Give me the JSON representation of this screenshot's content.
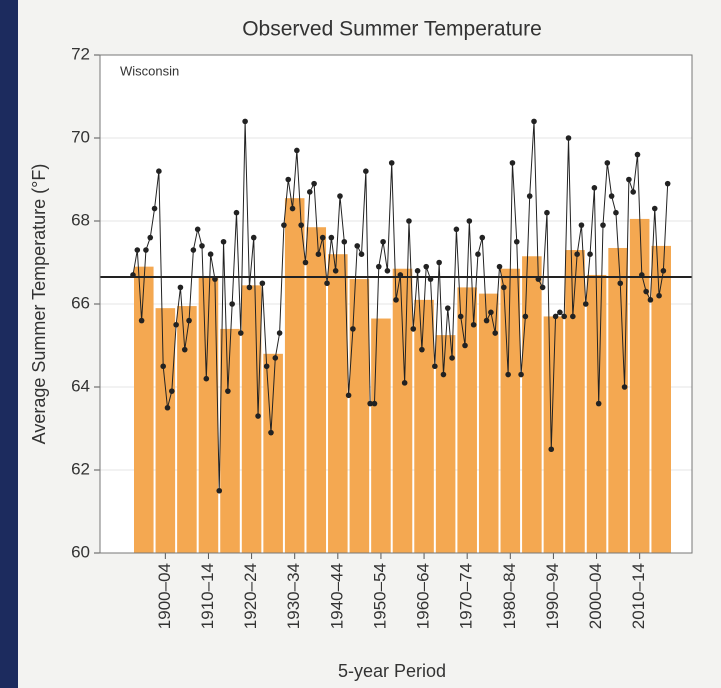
{
  "chart_data": {
    "type": "bar",
    "title": "Observed Summer Temperature",
    "annotation": "Wisconsin",
    "x_label": "5-year Period",
    "y_label": "Average Summer Temperature (°F)",
    "categories": [
      null,
      "1900–04",
      null,
      "1910–14",
      null,
      "1920–24",
      null,
      "1930–34",
      null,
      "1940–44",
      null,
      "1950–54",
      null,
      "1960–64",
      null,
      "1970–74",
      null,
      "1980–84",
      null,
      "1990–94",
      null,
      "2000–04",
      null,
      "2010–14",
      null
    ],
    "values": [
      66.9,
      65.9,
      65.95,
      66.65,
      65.4,
      66.45,
      64.8,
      68.55,
      67.85,
      67.2,
      66.6,
      65.65,
      66.85,
      66.1,
      65.25,
      66.4,
      66.25,
      66.85,
      67.15,
      65.7,
      67.3,
      66.7,
      67.35,
      68.05,
      67.4
    ],
    "color": "#f4a851",
    "annual": {
      "color": "#222222",
      "x": [
        1895,
        1896,
        1897,
        1898,
        1899,
        1900,
        1901,
        1902,
        1903,
        1904,
        1905,
        1906,
        1907,
        1908,
        1909,
        1910,
        1911,
        1912,
        1913,
        1914,
        1915,
        1916,
        1917,
        1918,
        1919,
        1920,
        1921,
        1922,
        1923,
        1924,
        1925,
        1926,
        1927,
        1928,
        1929,
        1930,
        1931,
        1932,
        1933,
        1934,
        1935,
        1936,
        1937,
        1938,
        1939,
        1940,
        1941,
        1942,
        1943,
        1944,
        1945,
        1946,
        1947,
        1948,
        1949,
        1950,
        1951,
        1952,
        1953,
        1954,
        1955,
        1956,
        1957,
        1958,
        1959,
        1960,
        1961,
        1962,
        1963,
        1964,
        1965,
        1966,
        1967,
        1968,
        1969,
        1970,
        1971,
        1972,
        1973,
        1974,
        1975,
        1976,
        1977,
        1978,
        1979,
        1980,
        1981,
        1982,
        1983,
        1984,
        1985,
        1986,
        1987,
        1988,
        1989,
        1990,
        1991,
        1992,
        1993,
        1994,
        1995,
        1996,
        1997,
        1998,
        1999,
        2000,
        2001,
        2002,
        2003,
        2004,
        2005,
        2006,
        2007,
        2008,
        2009,
        2010,
        2011,
        2012,
        2013,
        2014,
        2015,
        2016,
        2017,
        2018,
        2019
      ],
      "values": [
        66.7,
        67.3,
        65.6,
        67.3,
        67.6,
        68.3,
        69.2,
        64.5,
        63.5,
        63.9,
        65.5,
        66.4,
        64.9,
        65.6,
        67.3,
        67.8,
        67.4,
        64.2,
        67.2,
        66.6,
        61.5,
        67.5,
        63.9,
        66.0,
        68.2,
        65.3,
        70.4,
        66.4,
        67.6,
        63.3,
        66.5,
        64.5,
        62.9,
        64.7,
        65.3,
        67.9,
        69.0,
        68.3,
        69.7,
        67.9,
        67.0,
        68.7,
        68.9,
        67.2,
        67.6,
        66.5,
        67.6,
        66.8,
        68.6,
        67.5,
        63.8,
        65.4,
        67.4,
        67.2,
        69.2,
        63.6,
        63.6,
        66.9,
        67.5,
        66.8,
        69.4,
        66.1,
        66.7,
        64.1,
        68.0,
        65.4,
        66.8,
        64.9,
        66.9,
        66.6,
        64.5,
        67.0,
        64.3,
        65.9,
        64.7,
        67.8,
        65.7,
        65.0,
        68.0,
        65.5,
        67.2,
        67.6,
        65.6,
        65.8,
        65.3,
        66.9,
        66.4,
        64.3,
        69.4,
        67.5,
        64.3,
        65.7,
        68.6,
        70.4,
        66.6,
        66.4,
        68.2,
        62.5,
        65.7,
        65.8,
        65.7,
        70.0,
        65.7,
        67.2,
        67.9,
        66.0,
        67.2,
        68.8,
        63.6,
        67.9,
        69.4,
        68.6,
        68.2,
        66.5,
        64.0,
        69.0,
        68.7,
        69.6,
        66.7,
        66.3,
        66.1,
        68.3,
        66.2,
        66.8,
        68.9
      ]
    },
    "reference_line": 66.65,
    "reference_color": "#222222",
    "xlim": [
      1895,
      2020
    ],
    "ylim": [
      60,
      72
    ],
    "yticks": [
      60,
      62,
      64,
      66,
      68,
      70,
      72
    ],
    "grid": true
  }
}
